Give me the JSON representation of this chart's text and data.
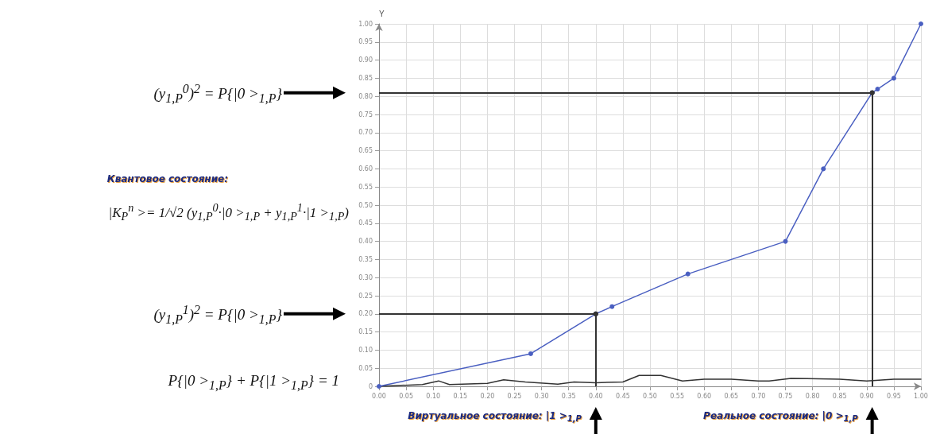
{
  "chart_data": {
    "type": "line",
    "ylabel": "Y",
    "xlim": [
      0,
      1
    ],
    "ylim": [
      0,
      1
    ],
    "xticks": [
      {
        "value": 0,
        "label": "0.00"
      },
      0.05,
      {
        "value": 0.1,
        "label": "0.10"
      },
      0.15,
      {
        "value": 0.2,
        "label": "0.20"
      },
      0.25,
      {
        "value": 0.3,
        "label": "0.30"
      },
      0.35,
      {
        "value": 0.4,
        "label": "0.40"
      },
      0.45,
      {
        "value": 0.5,
        "label": "0.50"
      },
      0.55,
      {
        "value": 0.6,
        "label": "0.60"
      },
      0.65,
      {
        "value": 0.7,
        "label": "0.70"
      },
      0.75,
      {
        "value": 0.8,
        "label": "0.80"
      },
      0.85,
      {
        "value": 0.9,
        "label": "0.90"
      },
      0.95,
      {
        "value": 1,
        "label": "1.00"
      }
    ],
    "yticks": [
      {
        "value": 0,
        "label": "0"
      },
      0.05,
      {
        "value": 0.1,
        "label": "0.10"
      },
      0.15,
      {
        "value": 0.2,
        "label": "0.20"
      },
      0.25,
      {
        "value": 0.3,
        "label": "0.30"
      },
      0.35,
      {
        "value": 0.4,
        "label": "0.40"
      },
      0.45,
      {
        "value": 0.5,
        "label": "0.50"
      },
      0.55,
      {
        "value": 0.6,
        "label": "0.60"
      },
      0.65,
      {
        "value": 0.7,
        "label": "0.70"
      },
      0.75,
      {
        "value": 0.8,
        "label": "0.80"
      },
      0.85,
      {
        "value": 0.9,
        "label": "0.90"
      },
      0.95,
      {
        "value": 1,
        "label": "1.00"
      }
    ],
    "grid": true,
    "marker": "circle",
    "line_style": "solid",
    "series": [
      {
        "color": "#4a5fc1",
        "x": [
          0,
          0.28,
          0.4,
          0.43,
          0.57,
          0.75,
          0.82,
          0.91,
          0.92,
          0.95,
          1
        ],
        "values": [
          0,
          0.09,
          0.2,
          0.22,
          0.31,
          0.4,
          0.6,
          0.81,
          0.82,
          0.85,
          1
        ]
      },
      {
        "color": "#333333",
        "marker": "none",
        "x": [
          0,
          0.08,
          0.11,
          0.13,
          0.2,
          0.23,
          0.27,
          0.33,
          0.36,
          0.4,
          0.45,
          0.48,
          0.52,
          0.56,
          0.6,
          0.65,
          0.7,
          0.72,
          0.76,
          0.85,
          0.9,
          0.95,
          1
        ],
        "values": [
          0,
          0.005,
          0.015,
          0.005,
          0.008,
          0.018,
          0.012,
          0.006,
          0.012,
          0.01,
          0.012,
          0.03,
          0.03,
          0.015,
          0.02,
          0.02,
          0.015,
          0.015,
          0.022,
          0.02,
          0.015,
          0.02,
          0.02
        ]
      }
    ],
    "ref_lines": [
      {
        "axis": "y",
        "value": 0.81,
        "color": "#333333"
      },
      {
        "axis": "y",
        "value": 0.2,
        "color": "#333333"
      },
      {
        "axis": "x",
        "value": 0.4,
        "color": "#333333"
      },
      {
        "axis": "x",
        "value": 0.91,
        "color": "#333333"
      }
    ],
    "annotations": [
      "Квантовое состояние:",
      "|K$_{P}$$^{n}$ >= 1/√2 (y$_{1,P}$$^{0}$·|0 >$_{1,P}$ + y$_{1,P}$$^{1}$·|1 >$_{1,P}$)",
      "P{|0 >$_{1,P}$} + P{|1 >$_{1,P}$} = 1",
      "(y$_{1,P}$$^{0}$)$^{2}$ = P{|0 >$_{1,P}$}",
      "(y$_{1,P}$$^{1}$)$^{2}$ = P{|0 >$_{1,P}$}",
      {
        "text": "Виртуальное состояние: |1 >$_{1,P}$",
        "x": 0.4,
        "y": 0
      },
      {
        "text": "Реальное состояние: |0 >$_{1,P}$",
        "x": 0.91,
        "y": 0
      }
    ]
  }
}
